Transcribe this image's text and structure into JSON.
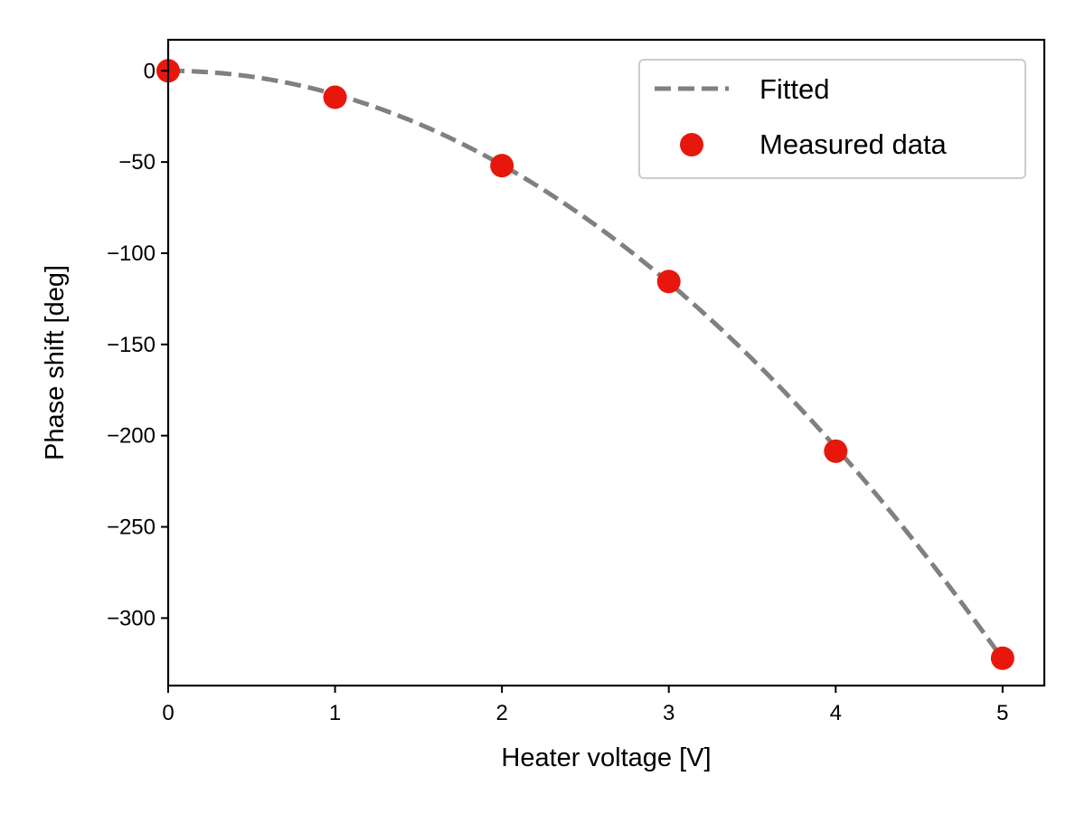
{
  "chart_data": {
    "type": "scatter",
    "title": "",
    "xlabel": "Heater voltage [V]",
    "ylabel": "Phase shift [deg]",
    "xlim": [
      0,
      5.25
    ],
    "ylim": [
      -337,
      17
    ],
    "x_ticks": [
      0,
      1,
      2,
      3,
      4,
      5
    ],
    "x_tick_labels": [
      "0",
      "1",
      "2",
      "3",
      "4",
      "5"
    ],
    "y_ticks": [
      0,
      -50,
      -100,
      -150,
      -200,
      -250,
      -300
    ],
    "y_tick_labels": [
      "0",
      "−50",
      "−100",
      "−150",
      "−200",
      "−250",
      "−300"
    ],
    "grid": false,
    "legend_position": "top-right",
    "series": [
      {
        "name": "Fitted",
        "kind": "line",
        "style": "dashed",
        "color": "#808080",
        "model": "quadratic",
        "coefficient": -12.9
      },
      {
        "name": "Measured data",
        "kind": "scatter",
        "color": "#e8170b",
        "x": [
          0,
          1,
          2,
          3,
          4,
          5
        ],
        "y": [
          0,
          -14.5,
          -52,
          -115.5,
          -208.5,
          -322
        ]
      }
    ]
  }
}
